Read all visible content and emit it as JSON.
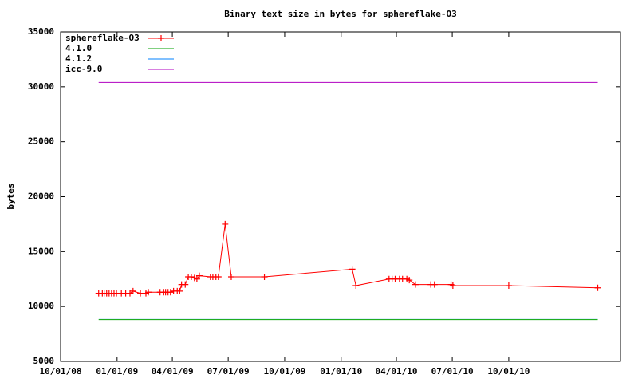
{
  "chart_data": {
    "type": "line",
    "title": "Binary text size in bytes for sphereflake-O3",
    "y_label": "bytes",
    "xlim": [
      "10/01/08",
      "04/01/11"
    ],
    "xticks": [
      "10/01/08",
      "01/01/09",
      "04/01/09",
      "07/01/09",
      "10/01/09",
      "01/01/10",
      "04/01/10",
      "07/01/10",
      "10/01/10"
    ],
    "ylim": [
      5000,
      35000
    ],
    "yticks": [
      5000,
      10000,
      15000,
      20000,
      25000,
      30000,
      35000
    ],
    "grid": false,
    "legend": "top-left",
    "series": [
      {
        "name": "sphereflake-O3",
        "color": "#ff0000",
        "marker": "plus",
        "x": [
          "12/02/08",
          "12/08/08",
          "12/11/08",
          "12/15/08",
          "12/19/08",
          "12/23/08",
          "12/27/08",
          "12/31/08",
          "01/08/09",
          "01/15/09",
          "01/22/09",
          "01/27/09",
          "02/08/09",
          "02/17/09",
          "02/21/09",
          "03/12/09",
          "03/18/09",
          "03/21/09",
          "03/25/09",
          "03/29/09",
          "04/03/09",
          "04/09/09",
          "04/13/09",
          "04/16/09",
          "04/22/09",
          "04/27/09",
          "05/02/09",
          "05/07/09",
          "05/11/09",
          "05/15/09",
          "06/02/09",
          "06/06/09",
          "06/11/09",
          "06/15/09",
          "06/26/09",
          "07/06/09",
          "08/29/09",
          "01/19/10",
          "01/25/10",
          "03/20/10",
          "03/25/10",
          "03/30/10",
          "04/06/10",
          "04/11/10",
          "04/18/10",
          "04/22/10",
          "05/02/10",
          "05/27/10",
          "06/02/10",
          "06/29/10",
          "07/02/10",
          "10/01/10",
          "02/23/11"
        ],
        "values": [
          11200,
          11200,
          11200,
          11200,
          11200,
          11200,
          11200,
          11200,
          11200,
          11200,
          11200,
          11400,
          11200,
          11200,
          11300,
          11300,
          11300,
          11300,
          11300,
          11300,
          11400,
          11400,
          11400,
          12000,
          12000,
          12700,
          12700,
          12600,
          12500,
          12800,
          12700,
          12700,
          12700,
          12700,
          17500,
          12700,
          12700,
          13400,
          11900,
          12500,
          12500,
          12500,
          12500,
          12500,
          12500,
          12400,
          12000,
          12000,
          12000,
          12000,
          11900,
          11900,
          11700
        ]
      },
      {
        "name": "4.1.0",
        "color": "#00a000",
        "x": [
          "12/02/08",
          "02/23/11"
        ],
        "values": [
          8800,
          8800
        ]
      },
      {
        "name": "4.1.2",
        "color": "#0080ff",
        "x": [
          "12/02/08",
          "02/23/11"
        ],
        "values": [
          8950,
          8950
        ]
      },
      {
        "name": "icc-9.0",
        "color": "#b000c0",
        "x": [
          "12/02/08",
          "02/23/11"
        ],
        "values": [
          30400,
          30400
        ]
      }
    ]
  }
}
